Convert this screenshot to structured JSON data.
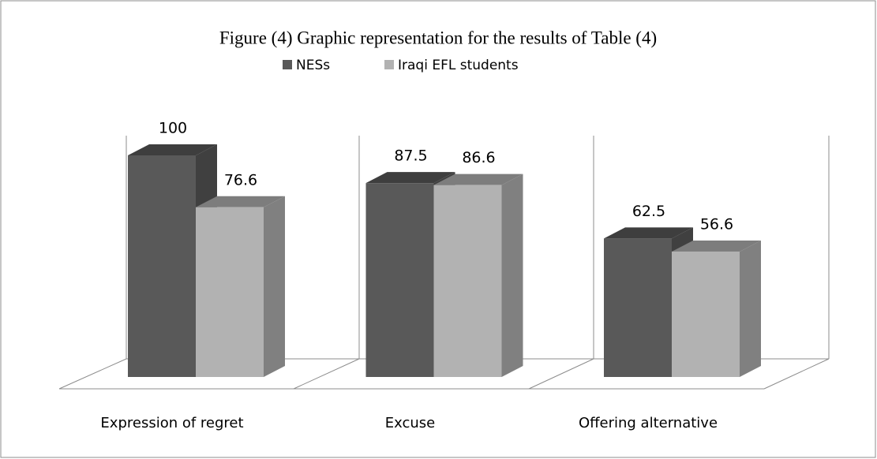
{
  "chart_data": {
    "type": "bar3d",
    "title": "Figure (4) Graphic representation for the results of Table (4)",
    "categories": [
      "Expression of regret",
      "Excuse",
      "Offering alternative"
    ],
    "series": [
      {
        "name": "NESs",
        "color": "#595959",
        "values": [
          100,
          87.5,
          62.5
        ]
      },
      {
        "name": "Iraqi EFL students",
        "color": "#b2b2b2",
        "values": [
          76.6,
          86.6,
          56.6
        ]
      }
    ],
    "legend": "top"
  }
}
